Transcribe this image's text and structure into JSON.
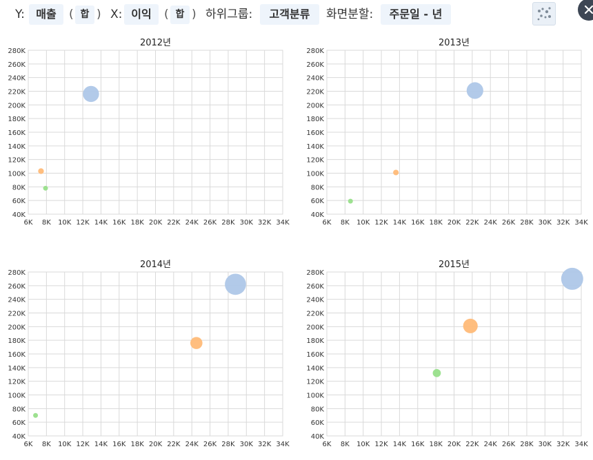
{
  "toolbar": {
    "y_label": "Y:",
    "y_field": "매출",
    "y_agg": "합",
    "x_label": "X:",
    "x_field": "이익",
    "x_agg": "합",
    "group_label": "하위그룹:",
    "group_field": "고객분류",
    "split_label": "화면분할:",
    "split_field": "주문일 - 년",
    "paren_open": "(",
    "paren_close": ")",
    "chart_type_icon": "scatter-icon",
    "close_icon": "close-icon"
  },
  "colors": {
    "series_1": "#aec7e8",
    "series_2": "#ffbb78",
    "series_3": "#98df8a",
    "grid": "#d9d9d9",
    "chip_bg": "#eef4fb"
  },
  "chart_data": [
    {
      "type": "scatter",
      "title": "2012년",
      "xlim": [
        6000,
        34000
      ],
      "ylim": [
        40000,
        280000
      ],
      "xticks": [
        "6K",
        "8K",
        "10K",
        "12K",
        "14K",
        "16K",
        "18K",
        "20K",
        "22K",
        "24K",
        "26K",
        "28K",
        "30K",
        "32K",
        "34K"
      ],
      "yticks": [
        "40K",
        "60K",
        "80K",
        "100K",
        "120K",
        "140K",
        "160K",
        "180K",
        "200K",
        "220K",
        "240K",
        "260K",
        "280K"
      ],
      "grid": true,
      "points": [
        {
          "series": 1,
          "x": 12900,
          "y": 216000,
          "size": 216000
        },
        {
          "series": 2,
          "x": 7400,
          "y": 103000,
          "size": 103000
        },
        {
          "series": 3,
          "x": 7900,
          "y": 78000,
          "size": 78000
        }
      ]
    },
    {
      "type": "scatter",
      "title": "2013년",
      "xlim": [
        6000,
        34000
      ],
      "ylim": [
        40000,
        280000
      ],
      "xticks": [
        "6K",
        "8K",
        "10K",
        "12K",
        "14K",
        "16K",
        "18K",
        "20K",
        "22K",
        "24K",
        "26K",
        "28K",
        "30K",
        "32K",
        "34K"
      ],
      "yticks": [
        "40K",
        "60K",
        "80K",
        "100K",
        "120K",
        "140K",
        "160K",
        "180K",
        "200K",
        "220K",
        "240K",
        "260K",
        "280K"
      ],
      "grid": true,
      "points": [
        {
          "series": 1,
          "x": 22300,
          "y": 221000,
          "size": 221000
        },
        {
          "series": 2,
          "x": 13600,
          "y": 101000,
          "size": 101000
        },
        {
          "series": 3,
          "x": 8600,
          "y": 59000,
          "size": 59000
        }
      ]
    },
    {
      "type": "scatter",
      "title": "2014년",
      "xlim": [
        6000,
        34000
      ],
      "ylim": [
        40000,
        280000
      ],
      "xticks": [
        "6K",
        "8K",
        "10K",
        "12K",
        "14K",
        "16K",
        "18K",
        "20K",
        "22K",
        "24K",
        "26K",
        "28K",
        "30K",
        "32K",
        "34K"
      ],
      "yticks": [
        "40K",
        "60K",
        "80K",
        "100K",
        "120K",
        "140K",
        "160K",
        "180K",
        "200K",
        "220K",
        "240K",
        "260K",
        "280K"
      ],
      "grid": true,
      "points": [
        {
          "series": 1,
          "x": 28800,
          "y": 262000,
          "size": 262000
        },
        {
          "series": 2,
          "x": 24500,
          "y": 176000,
          "size": 176000
        },
        {
          "series": 3,
          "x": 6800,
          "y": 70000,
          "size": 70000
        }
      ]
    },
    {
      "type": "scatter",
      "title": "2015년",
      "xlim": [
        6000,
        34000
      ],
      "ylim": [
        40000,
        280000
      ],
      "xticks": [
        "6K",
        "8K",
        "10K",
        "12K",
        "14K",
        "16K",
        "18K",
        "20K",
        "22K",
        "24K",
        "26K",
        "28K",
        "30K",
        "32K",
        "34K"
      ],
      "yticks": [
        "40K",
        "60K",
        "80K",
        "100K",
        "120K",
        "140K",
        "160K",
        "180K",
        "200K",
        "220K",
        "240K",
        "260K",
        "280K"
      ],
      "grid": true,
      "points": [
        {
          "series": 1,
          "x": 33000,
          "y": 270000,
          "size": 270000
        },
        {
          "series": 2,
          "x": 21800,
          "y": 201000,
          "size": 201000
        },
        {
          "series": 3,
          "x": 18100,
          "y": 132000,
          "size": 132000
        }
      ]
    }
  ]
}
